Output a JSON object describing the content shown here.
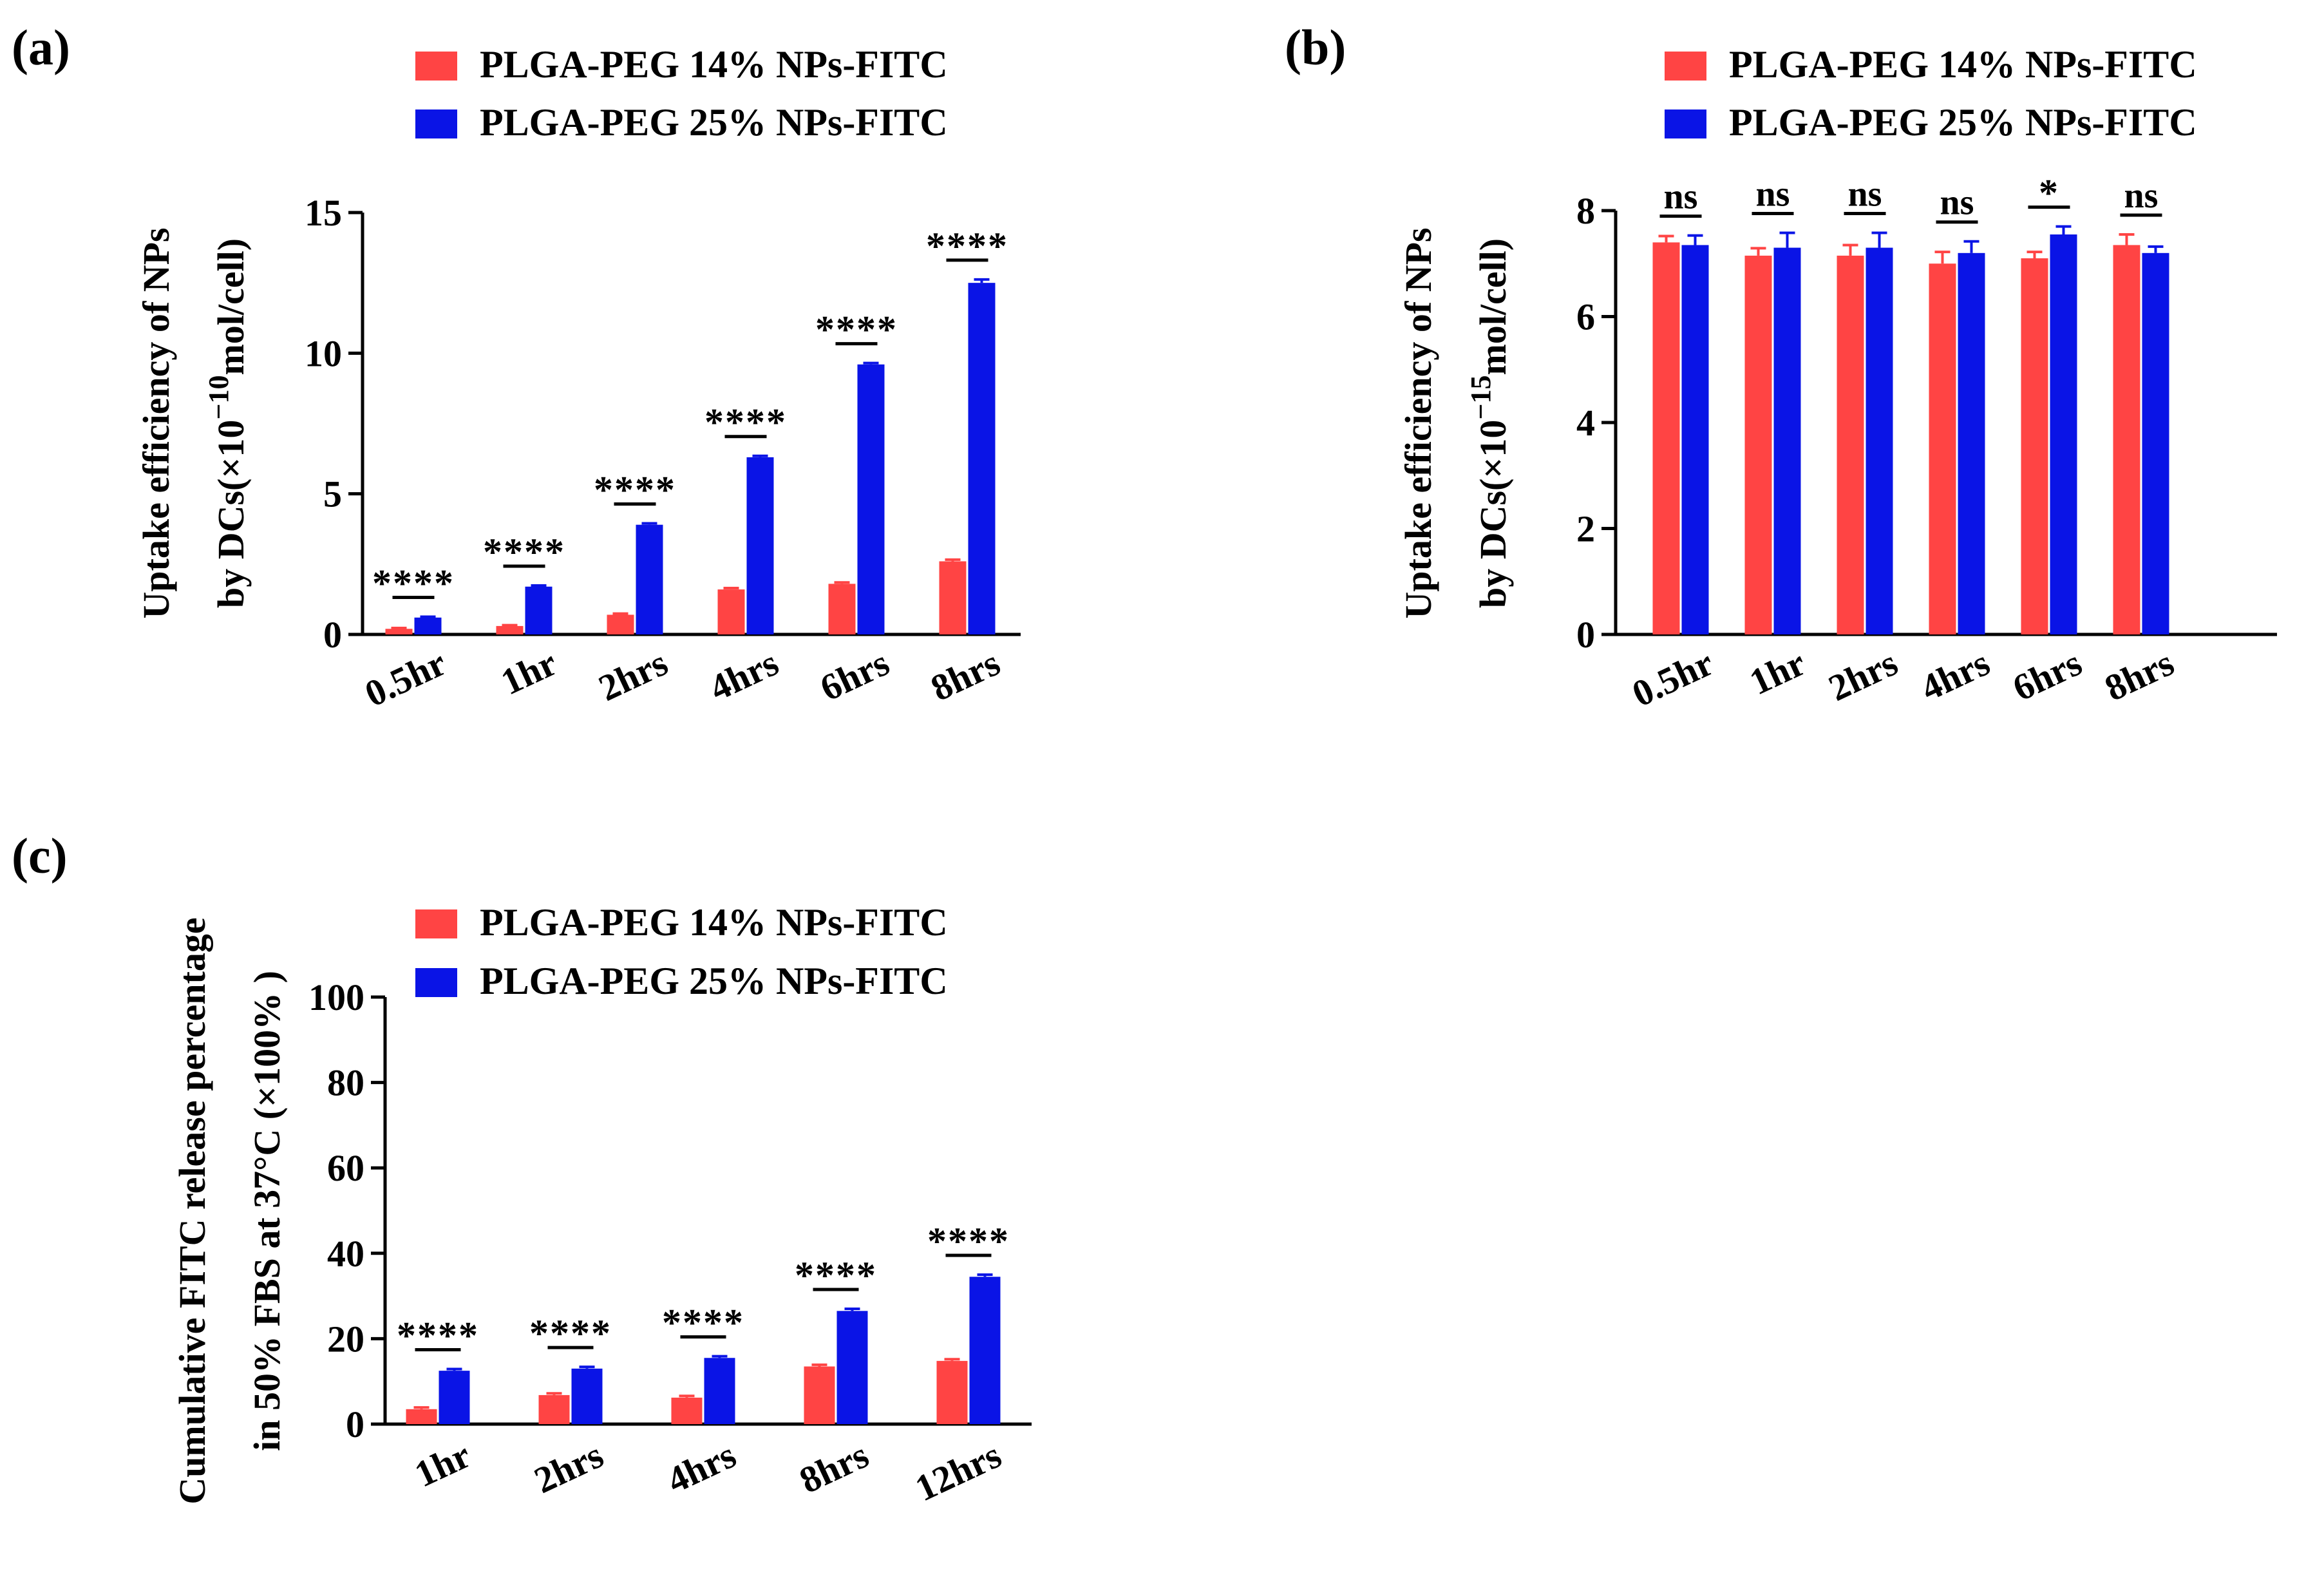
{
  "colors": {
    "series_14": "#ff4444",
    "series_25": "#0a14e6",
    "axis": "#000000"
  },
  "legend": {
    "series_14": "PLGA-PEG 14% NPs-FITC",
    "series_25": "PLGA-PEG 25% NPs-FITC"
  },
  "chart_data": [
    {
      "panel": "(a)",
      "type": "bar",
      "ylabel_line1": "Uptake efficiency of NPs",
      "ylabel_line2_pre": "by DCs(×10",
      "ylabel_line2_sup": "−10",
      "ylabel_line2_post": "mol/cell)",
      "ylim": [
        0,
        15
      ],
      "yticks": [
        "0",
        "5",
        "10",
        "15"
      ],
      "categories": [
        "0.5hr",
        "1hr",
        "2hrs",
        "4hrs",
        "6hrs",
        "8hrs"
      ],
      "series": [
        {
          "name": "PLGA-PEG 14% NPs-FITC",
          "values": [
            0.2,
            0.3,
            0.7,
            1.6,
            1.8,
            2.6
          ],
          "errors": [
            0.03,
            0.03,
            0.04,
            0.05,
            0.05,
            0.06
          ]
        },
        {
          "name": "PLGA-PEG 25% NPs-FITC",
          "values": [
            0.6,
            1.7,
            3.9,
            6.3,
            9.6,
            12.5
          ],
          "errors": [
            0.03,
            0.04,
            0.05,
            0.05,
            0.05,
            0.12
          ]
        }
      ],
      "significance": [
        "****",
        "****",
        "****",
        "****",
        "****",
        "****"
      ]
    },
    {
      "panel": "(b)",
      "type": "bar",
      "ylabel_line1": "Uptake efficiency of NPs",
      "ylabel_line2_pre": "by DCs(×10",
      "ylabel_line2_sup": "−15",
      "ylabel_line2_post": "mol/cell)",
      "ylim": [
        0,
        8
      ],
      "yticks": [
        "0",
        "2",
        "4",
        "6",
        "8"
      ],
      "categories": [
        "0.5hr",
        "1hr",
        "2hrs",
        "4hrs",
        "6hrs",
        "8hrs"
      ],
      "series": [
        {
          "name": "PLGA-PEG 14% NPs-FITC",
          "values": [
            7.4,
            7.15,
            7.15,
            7.0,
            7.1,
            7.35
          ],
          "errors": [
            0.12,
            0.14,
            0.2,
            0.22,
            0.12,
            0.2
          ]
        },
        {
          "name": "PLGA-PEG 25% NPs-FITC",
          "values": [
            7.35,
            7.3,
            7.3,
            7.2,
            7.55,
            7.2
          ],
          "errors": [
            0.18,
            0.28,
            0.28,
            0.22,
            0.15,
            0.12
          ]
        }
      ],
      "significance": [
        "ns",
        "ns",
        "ns",
        "ns",
        "*",
        "ns"
      ]
    },
    {
      "panel": "(c)",
      "type": "bar",
      "ylabel_line1": "Cumulative FITC release percentage",
      "ylabel_line2": "in 50% FBS at 37°C  (×100% )",
      "ylim": [
        0,
        100
      ],
      "yticks": [
        "0",
        "20",
        "40",
        "60",
        "80",
        "100"
      ],
      "categories": [
        "1hr",
        "2hrs",
        "4hrs",
        "8hrs",
        "12hrs"
      ],
      "series": [
        {
          "name": "PLGA-PEG 14% NPs-FITC",
          "values": [
            3.5,
            6.8,
            6.2,
            13.5,
            14.8
          ],
          "errors": [
            0.4,
            0.4,
            0.4,
            0.4,
            0.4
          ]
        },
        {
          "name": "PLGA-PEG 25% NPs-FITC",
          "values": [
            12.5,
            13.0,
            15.5,
            26.5,
            34.5
          ],
          "errors": [
            0.4,
            0.4,
            0.4,
            0.5,
            0.5
          ]
        }
      ],
      "significance": [
        "****",
        "****",
        "****",
        "****",
        "****"
      ]
    }
  ]
}
